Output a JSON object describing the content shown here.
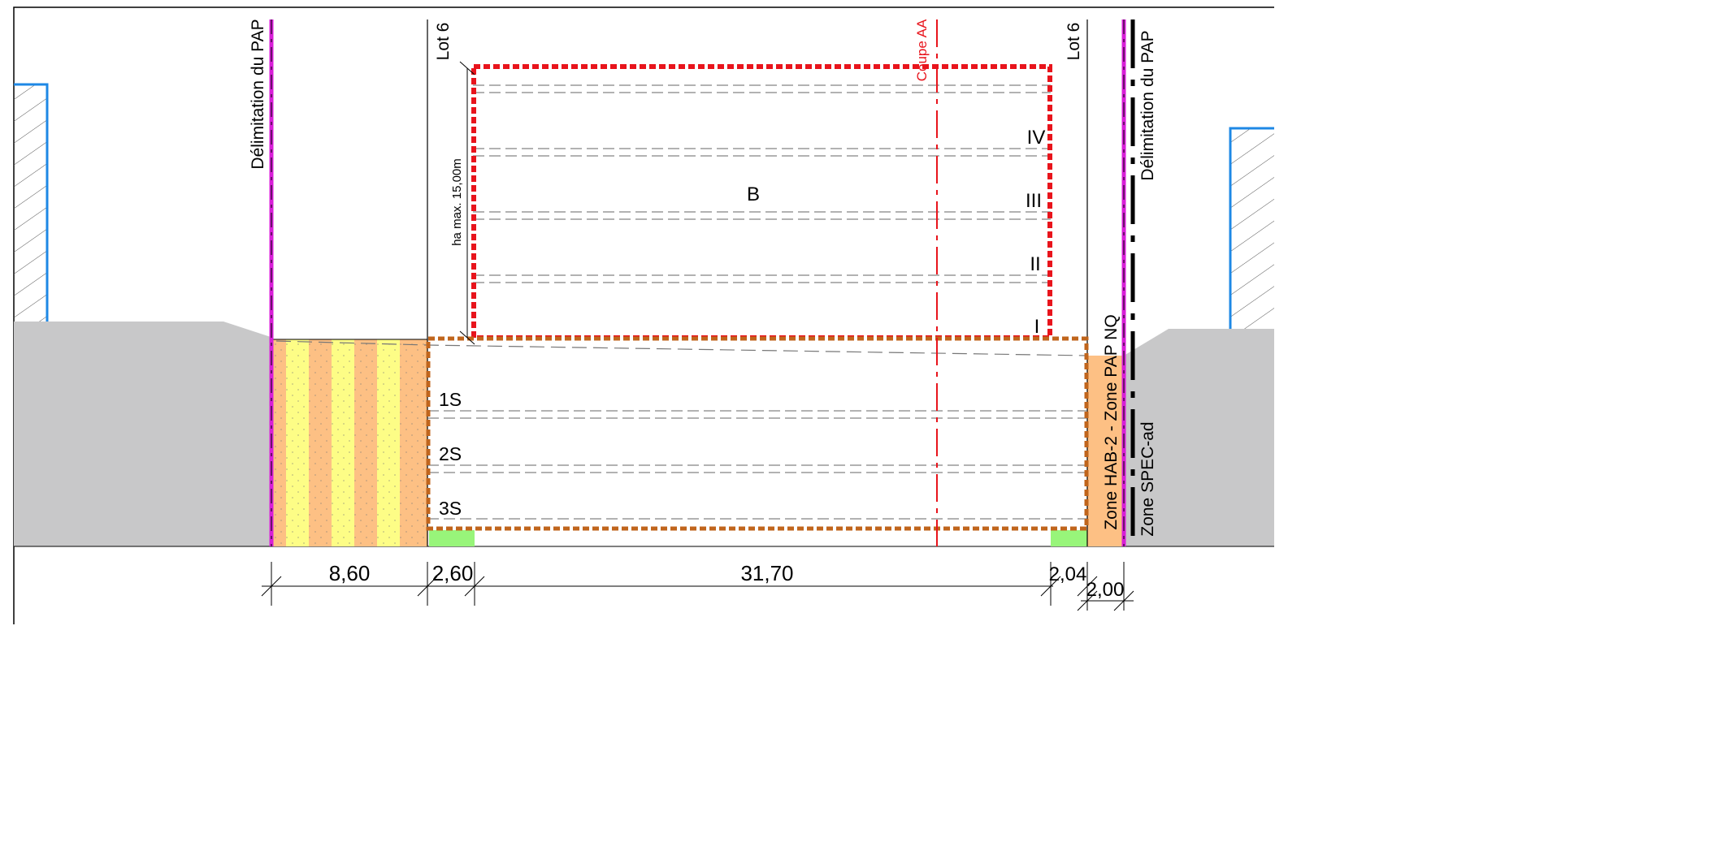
{
  "labels": {
    "boundary_left": "Délimitation du PAP",
    "boundary_right": "Délimitation du PAP",
    "lot_left": "Lot 6",
    "lot_right": "Lot 6",
    "section_cut": "Coupe AA",
    "building_zone": "B",
    "height_max": "ha max. 15,00m",
    "zone_hab": "Zone HAB-2 - Zone PAP NQ",
    "zone_spec": "Zone SPEC-ad"
  },
  "levels_above": [
    "IV",
    "III",
    "II",
    "I"
  ],
  "levels_below": [
    "1S",
    "2S",
    "3S"
  ],
  "dimensions": [
    "8,60",
    "2,60",
    "31,70",
    "2,04",
    "2,00"
  ],
  "colors": {
    "building_outline": "#e8141c",
    "basement_outline": "#c0651c",
    "ground": "#c8c8c9",
    "boundary_line": "#d81fd8",
    "neighbor_outline": "#1e88e5",
    "stripe_yellow": "#fdfd86",
    "stripe_orange": "#fdc084",
    "green_strip": "#98f57a",
    "zone_orange": "#fdc084"
  }
}
